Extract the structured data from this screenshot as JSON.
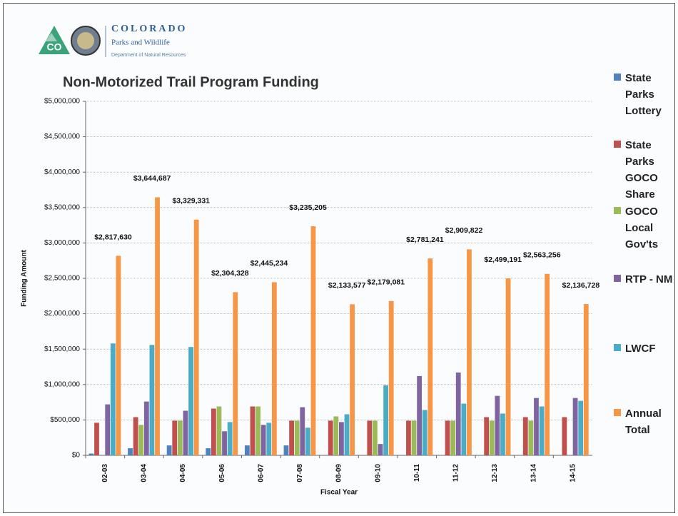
{
  "header": {
    "logo_text": "CO",
    "org": "COLORADO",
    "division": "Parks and Wildlife",
    "department": "Department of Natural Resources"
  },
  "chart_data": {
    "type": "bar",
    "title": "Non-Motorized Trail Program Funding",
    "x_label": "Fiscal Year",
    "y_label": "Funding Amount",
    "categories": [
      "02-03",
      "03-04",
      "04-05",
      "05-06",
      "06-07",
      "07-08",
      "08-09",
      "09-10",
      "10-11",
      "11-12",
      "12-13",
      "13-14",
      "14-15"
    ],
    "series": [
      {
        "name": "State Parks Lottery",
        "color": "#4f81bd",
        "values": [
          25000,
          100000,
          140000,
          100000,
          140000,
          140000,
          0,
          0,
          0,
          0,
          0,
          0,
          0
        ]
      },
      {
        "name": "State Parks GOCO Share",
        "color": "#c0504d",
        "values": [
          460000,
          540000,
          490000,
          660000,
          690000,
          490000,
          490000,
          490000,
          490000,
          490000,
          540000,
          540000,
          540000
        ]
      },
      {
        "name": "GOCO Local Gov'ts",
        "color": "#9bbb59",
        "values": [
          0,
          430000,
          490000,
          690000,
          690000,
          490000,
          550000,
          490000,
          490000,
          490000,
          490000,
          490000,
          0
        ]
      },
      {
        "name": "RTP - NM",
        "color": "#8064a2",
        "values": [
          720000,
          760000,
          630000,
          340000,
          430000,
          680000,
          470000,
          160000,
          1120000,
          1170000,
          840000,
          810000,
          810000
        ]
      },
      {
        "name": "LWCF",
        "color": "#4bacc6",
        "values": [
          1580000,
          1560000,
          1530000,
          470000,
          460000,
          390000,
          580000,
          990000,
          640000,
          730000,
          590000,
          690000,
          770000
        ]
      },
      {
        "name": "Annual Total",
        "color": "#f79646",
        "values": [
          2817630,
          3644687,
          3329331,
          2304328,
          2445234,
          3235205,
          2133577,
          2179081,
          2781241,
          2909822,
          2499191,
          2563256,
          2136728
        ],
        "value_labels": [
          "$2,817,630",
          "$3,644,687",
          "$3,329,331",
          "$2,304,328",
          "$2,445,234",
          "$3,235,205",
          "$2,133,577",
          "$2,179,081",
          "$2,781,241",
          "$2,909,822",
          "$2,499,191",
          "$2,563,256",
          "$2,136,728"
        ]
      }
    ],
    "ylim": [
      0,
      5000000
    ],
    "yticks": [
      {
        "value": 0,
        "label": "$0"
      },
      {
        "value": 500000,
        "label": "$500,000"
      },
      {
        "value": 1000000,
        "label": "$1,000,000"
      },
      {
        "value": 1500000,
        "label": "$1,500,000"
      },
      {
        "value": 2000000,
        "label": "$2,000,000"
      },
      {
        "value": 2500000,
        "label": "$2,500,000"
      },
      {
        "value": 3000000,
        "label": "$3,000,000"
      },
      {
        "value": 3500000,
        "label": "$3,500,000"
      },
      {
        "value": 4000000,
        "label": "$4,000,000"
      },
      {
        "value": 4500000,
        "label": "$4,500,000"
      },
      {
        "value": 5000000,
        "label": "$5,000,000"
      }
    ],
    "grid": true,
    "legend": "right"
  }
}
